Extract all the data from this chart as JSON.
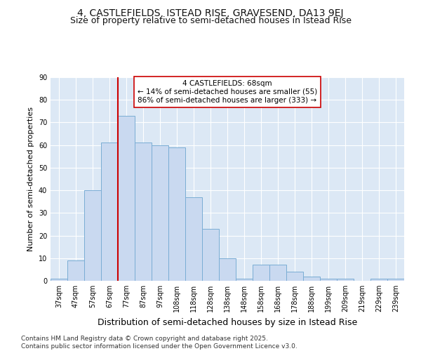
{
  "title": "4, CASTLEFIELDS, ISTEAD RISE, GRAVESEND, DA13 9EJ",
  "subtitle": "Size of property relative to semi-detached houses in Istead Rise",
  "xlabel": "Distribution of semi-detached houses by size in Istead Rise",
  "ylabel": "Number of semi-detached properties",
  "categories": [
    "37sqm",
    "47sqm",
    "57sqm",
    "67sqm",
    "77sqm",
    "87sqm",
    "97sqm",
    "108sqm",
    "118sqm",
    "128sqm",
    "138sqm",
    "148sqm",
    "158sqm",
    "168sqm",
    "178sqm",
    "188sqm",
    "199sqm",
    "209sqm",
    "219sqm",
    "229sqm",
    "239sqm"
  ],
  "values": [
    1,
    9,
    40,
    61,
    73,
    61,
    60,
    59,
    37,
    23,
    10,
    1,
    7,
    7,
    4,
    2,
    1,
    1,
    0,
    1,
    1
  ],
  "bar_color": "#c9d9f0",
  "bar_edge_color": "#7aadd4",
  "vline_color": "#cc0000",
  "vline_pos": 3.5,
  "annotation_line1": "4 CASTLEFIELDS: 68sqm",
  "annotation_line2": "← 14% of semi-detached houses are smaller (55)",
  "annotation_line3": "86% of semi-detached houses are larger (333) →",
  "annotation_box_color": "#ffffff",
  "annotation_box_edge": "#cc0000",
  "ylim": [
    0,
    90
  ],
  "yticks": [
    0,
    10,
    20,
    30,
    40,
    50,
    60,
    70,
    80,
    90
  ],
  "figure_bg": "#ffffff",
  "plot_bg": "#dce8f5",
  "grid_color": "#ffffff",
  "title_fontsize": 10,
  "subtitle_fontsize": 9,
  "xlabel_fontsize": 9,
  "ylabel_fontsize": 8,
  "tick_fontsize": 7,
  "annotation_fontsize": 7.5,
  "footer_fontsize": 6.5,
  "footer_line1": "Contains HM Land Registry data © Crown copyright and database right 2025.",
  "footer_line2": "Contains public sector information licensed under the Open Government Licence v3.0."
}
